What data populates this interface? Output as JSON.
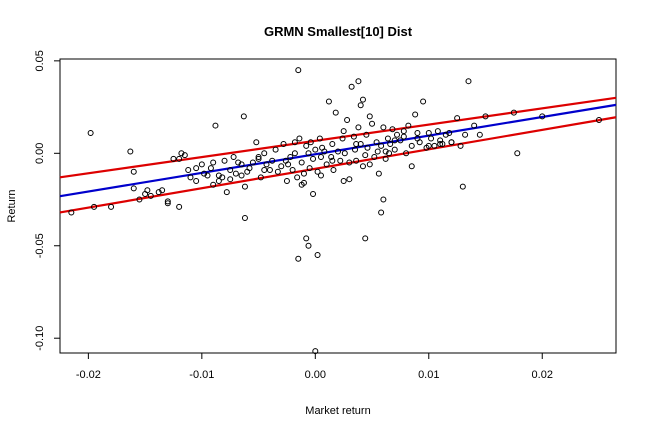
{
  "chart_data": {
    "type": "scatter",
    "title": "GRMN Smallest[10] Dist",
    "xlabel": "Market return",
    "ylabel": "Return",
    "xlim": [
      -0.0225,
      0.0265
    ],
    "ylim": [
      -0.108,
      0.051
    ],
    "xticks": [
      -0.02,
      -0.01,
      0.0,
      0.01,
      0.02
    ],
    "xtick_labels": [
      "-0.02",
      "-0.01",
      "0.00",
      "0.01",
      "0.02"
    ],
    "yticks": [
      -0.1,
      -0.05,
      0.0,
      0.05
    ],
    "ytick_labels": [
      "-0.10",
      "-0.05",
      "0.00",
      "0.05"
    ],
    "grid": false,
    "legend": "none",
    "colors": {
      "points": "#000000",
      "fit_line": "#0000cc",
      "band_lines": "#dd0000"
    },
    "series": [
      {
        "type": "scatter",
        "x": [
          -0.0215,
          -0.0198,
          -0.0195,
          -0.018,
          -0.0163,
          -0.016,
          -0.0155,
          -0.015,
          -0.0148,
          -0.0145,
          -0.0138,
          -0.0135,
          -0.013,
          -0.0125,
          -0.012,
          -0.0118,
          -0.0115,
          -0.0112,
          -0.011,
          -0.0105,
          -0.01,
          -0.0098,
          -0.0095,
          -0.0092,
          -0.009,
          -0.0088,
          -0.0085,
          -0.0082,
          -0.008,
          -0.0078,
          -0.0075,
          -0.0072,
          -0.007,
          -0.0068,
          -0.0065,
          -0.0063,
          -0.0062,
          -0.006,
          -0.0058,
          -0.0055,
          -0.0052,
          -0.005,
          -0.0048,
          -0.0045,
          -0.0043,
          -0.004,
          -0.0038,
          -0.0035,
          -0.0033,
          -0.003,
          -0.0028,
          -0.0026,
          -0.0024,
          -0.0022,
          -0.002,
          -0.0018,
          -0.0016,
          -0.0015,
          -0.0014,
          -0.0012,
          -0.001,
          -0.0008,
          -0.0006,
          -0.0005,
          -0.0004,
          -0.0002,
          0.0,
          0.0002,
          0.0004,
          0.0005,
          0.0006,
          0.0008,
          0.001,
          0.0012,
          0.0014,
          0.0015,
          0.0016,
          0.0018,
          0.002,
          0.0022,
          0.0024,
          0.0025,
          0.0026,
          0.0028,
          0.003,
          0.0032,
          0.0034,
          0.0035,
          0.0036,
          0.0038,
          0.004,
          0.0042,
          0.0044,
          0.0045,
          0.0046,
          0.0048,
          0.005,
          0.0052,
          0.0054,
          0.0055,
          0.0056,
          0.0058,
          0.006,
          0.0062,
          0.0064,
          0.0065,
          0.0066,
          0.0068,
          0.007,
          0.0072,
          0.0075,
          0.0078,
          0.008,
          0.0082,
          0.0085,
          0.0088,
          0.009,
          0.0092,
          0.0095,
          0.0098,
          0.01,
          0.0102,
          0.0105,
          0.0108,
          0.011,
          0.0112,
          0.0115,
          0.0118,
          0.012,
          0.0125,
          0.0128,
          0.013,
          0.0135,
          0.014,
          0.0145,
          0.015,
          0.0175,
          0.0178,
          0.02,
          0.025,
          -0.0062,
          -0.0015,
          -0.0012,
          -0.0008,
          -0.0006,
          -0.0002,
          0.0,
          0.0002,
          0.0038,
          0.0044,
          0.0058,
          0.006,
          -0.016,
          -0.012,
          -0.0085,
          -0.0065,
          -0.005,
          0.003,
          0.0036,
          0.004,
          0.0085,
          0.009,
          0.0132,
          -0.013,
          -0.0105,
          -0.009,
          -0.0075,
          -0.0045,
          -0.0025,
          -0.0018,
          -0.001,
          0.0005,
          0.0015,
          0.0025,
          0.0042,
          0.0048,
          0.0062,
          0.007,
          0.0078,
          0.01,
          0.011,
          0.012
        ],
        "y": [
          -0.032,
          0.011,
          -0.029,
          -0.029,
          0.001,
          -0.019,
          -0.025,
          -0.022,
          -0.02,
          -0.023,
          -0.021,
          -0.02,
          -0.026,
          -0.003,
          -0.029,
          0.0,
          -0.001,
          -0.009,
          -0.013,
          -0.015,
          -0.006,
          -0.011,
          -0.012,
          -0.008,
          -0.017,
          0.015,
          -0.015,
          -0.013,
          -0.004,
          -0.021,
          -0.009,
          -0.002,
          -0.011,
          -0.005,
          -0.012,
          0.02,
          -0.018,
          -0.01,
          -0.008,
          -0.005,
          0.006,
          -0.003,
          -0.013,
          0.0,
          -0.006,
          -0.009,
          -0.004,
          0.002,
          -0.01,
          -0.007,
          0.005,
          -0.004,
          -0.006,
          -0.002,
          -0.009,
          0.0,
          -0.013,
          0.045,
          0.008,
          -0.005,
          -0.011,
          0.004,
          0.0,
          -0.008,
          0.006,
          -0.003,
          0.002,
          -0.01,
          0.008,
          -0.002,
          0.003,
          0.001,
          -0.006,
          0.028,
          -0.002,
          0.005,
          -0.009,
          0.022,
          0.001,
          -0.004,
          0.008,
          0.012,
          0.0,
          0.018,
          -0.005,
          0.036,
          0.009,
          0.002,
          -0.004,
          0.014,
          0.005,
          0.029,
          -0.001,
          0.01,
          0.003,
          -0.006,
          0.016,
          -0.002,
          0.006,
          0.001,
          -0.011,
          0.004,
          0.014,
          -0.003,
          0.008,
          0.0,
          0.005,
          0.013,
          0.002,
          0.01,
          0.007,
          0.012,
          0.0,
          0.015,
          0.004,
          0.021,
          0.008,
          0.006,
          0.028,
          0.003,
          0.011,
          0.008,
          0.004,
          0.012,
          0.007,
          0.005,
          0.01,
          0.011,
          0.006,
          0.019,
          0.004,
          -0.018,
          0.039,
          0.015,
          0.01,
          0.02,
          0.022,
          0.0,
          0.02,
          0.018,
          -0.035,
          -0.057,
          -0.017,
          -0.046,
          -0.05,
          -0.022,
          -0.107,
          -0.055,
          0.039,
          -0.046,
          -0.032,
          -0.025,
          -0.01,
          -0.003,
          -0.012,
          -0.006,
          -0.002,
          -0.014,
          0.005,
          0.026,
          -0.007,
          0.011,
          0.01,
          -0.027,
          -0.008,
          -0.005,
          -0.014,
          -0.009,
          -0.015,
          0.006,
          -0.016,
          -0.012,
          -0.004,
          -0.015,
          -0.007,
          0.02,
          0.001,
          0.007,
          0.009,
          0.004,
          0.005,
          0.006
        ]
      },
      {
        "type": "line",
        "x": [
          -0.0225,
          0.0265
        ],
        "y": [
          -0.0232,
          0.0262
        ]
      },
      {
        "type": "line",
        "x": [
          -0.0225,
          0.0265
        ],
        "y": [
          -0.013,
          0.03
        ]
      },
      {
        "type": "line",
        "x": [
          -0.0225,
          0.0265
        ],
        "y": [
          -0.032,
          0.0195
        ]
      }
    ]
  }
}
